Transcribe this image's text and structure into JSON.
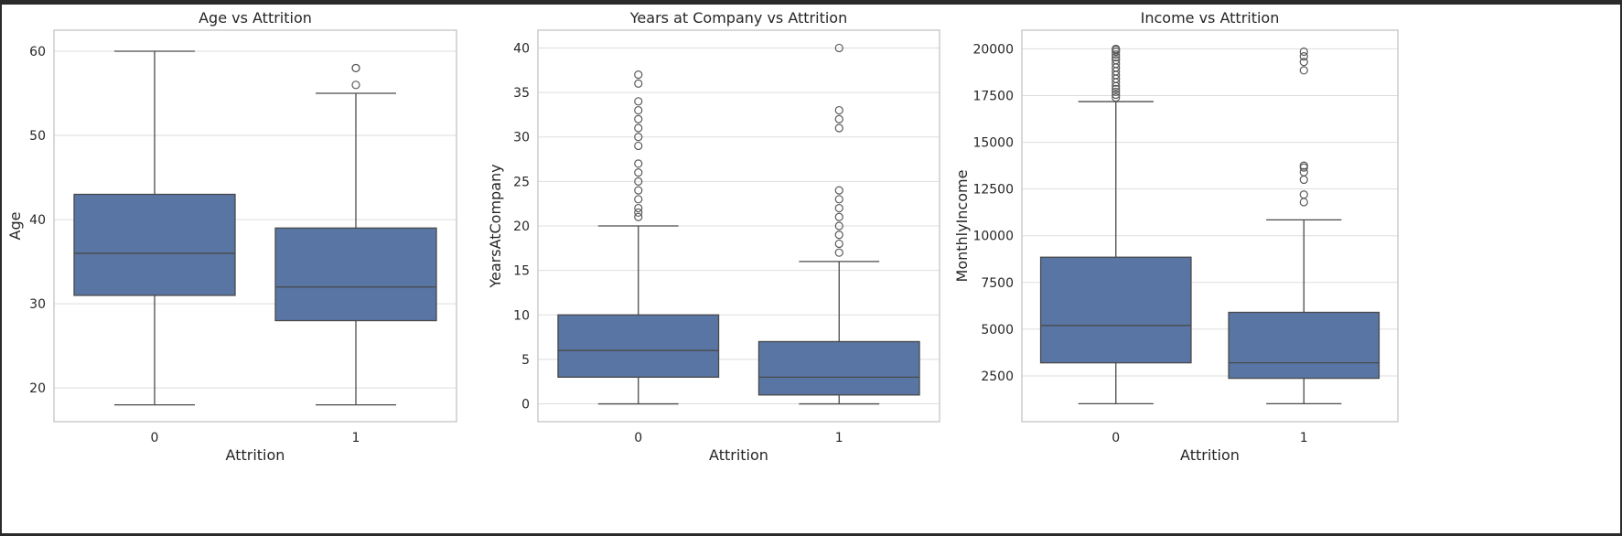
{
  "chart_data": [
    {
      "type": "box",
      "title": "Age vs Attrition",
      "xlabel": "Attrition",
      "ylabel": "Age",
      "categories": [
        "0",
        "1"
      ],
      "ylim": [
        16,
        62.5
      ],
      "yticks": [
        20,
        30,
        40,
        50,
        60
      ],
      "grid": true,
      "boxes": [
        {
          "whisker_low": 18,
          "q1": 31,
          "median": 36,
          "q3": 43,
          "whisker_high": 60,
          "outliers": []
        },
        {
          "whisker_low": 18,
          "q1": 28,
          "median": 32,
          "q3": 39,
          "whisker_high": 55,
          "outliers": [
            56,
            58,
            58
          ]
        }
      ]
    },
    {
      "type": "box",
      "title": "Years at Company vs Attrition",
      "xlabel": "Attrition",
      "ylabel": "YearsAtCompany",
      "categories": [
        "0",
        "1"
      ],
      "ylim": [
        -2,
        42
      ],
      "yticks": [
        0,
        5,
        10,
        15,
        20,
        25,
        30,
        35,
        40
      ],
      "grid": true,
      "boxes": [
        {
          "whisker_low": 0,
          "q1": 3,
          "median": 6,
          "q3": 10,
          "whisker_high": 20,
          "outliers": [
            21,
            21.5,
            22,
            23,
            24,
            25,
            26,
            27,
            29,
            30,
            31,
            32,
            33,
            34,
            36,
            37
          ]
        },
        {
          "whisker_low": 0,
          "q1": 1,
          "median": 3,
          "q3": 7,
          "whisker_high": 16,
          "outliers": [
            17,
            18,
            19,
            20,
            21,
            22,
            23,
            24,
            31,
            32,
            33,
            40
          ]
        }
      ]
    },
    {
      "type": "box",
      "title": "Income vs Attrition",
      "xlabel": "Attrition",
      "ylabel": "MonthlyIncome",
      "categories": [
        "0",
        "1"
      ],
      "ylim": [
        50,
        21000
      ],
      "yticks": [
        2500,
        5000,
        7500,
        10000,
        12500,
        15000,
        17500,
        20000
      ],
      "grid": true,
      "boxes": [
        {
          "whisker_low": 1009,
          "q1": 3200,
          "median": 5200,
          "q3": 8850,
          "whisker_high": 17180,
          "outliers": [
            17400,
            17550,
            17700,
            17850,
            18000,
            18200,
            18400,
            18600,
            18800,
            19000,
            19200,
            19400,
            19550,
            19700,
            19850,
            19950,
            20000
          ]
        },
        {
          "whisker_low": 1009,
          "q1": 2370,
          "median": 3200,
          "q3": 5900,
          "whisker_high": 10850,
          "outliers": [
            11800,
            12200,
            13000,
            13400,
            13650,
            13750,
            18850,
            19300,
            19600,
            19850
          ]
        }
      ]
    }
  ],
  "colors": {
    "box_fill": "#5875a4",
    "box_line": "#4a4a4a",
    "grid": "#dddddd",
    "frame": "#cccccc",
    "outlier_stroke": "#5a5a5a"
  }
}
